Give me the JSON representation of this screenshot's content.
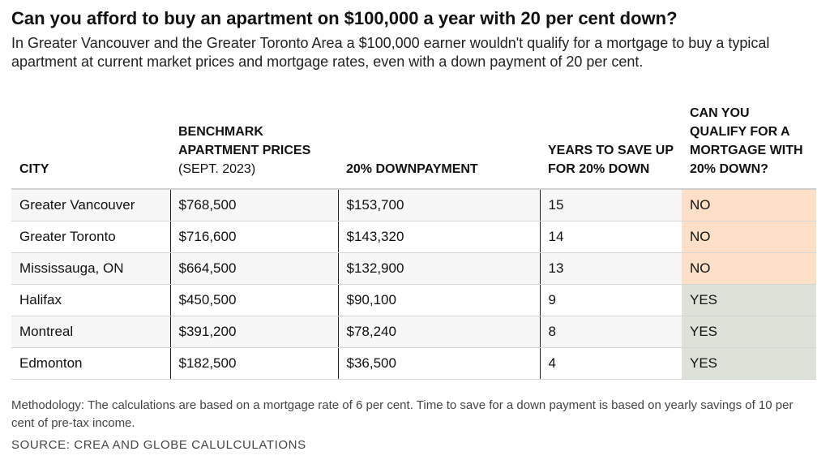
{
  "header": {
    "title": "Can you afford to buy an apartment on $100,000 a year with 20 per cent down?",
    "subtitle": "In Greater Vancouver and the Greater Toronto Area a $100,000 earner wouldn't qualify for a mortgage to buy a typical apartment at current market prices and mortgage rates, even with a down payment of 20 per cent."
  },
  "chart_data": {
    "type": "table",
    "columns": [
      {
        "bold": "CITY",
        "light": ""
      },
      {
        "bold": "BENCHMARK APARTMENT PRICES",
        "light": " (SEPT. 2023)"
      },
      {
        "bold": "20% DOWNPAYMENT",
        "light": ""
      },
      {
        "bold": "YEARS TO SAVE UP FOR 20% DOWN",
        "light": ""
      },
      {
        "bold": "CAN YOU QUALIFY FOR A MORTGAGE WITH 20% DOWN?",
        "light": ""
      }
    ],
    "rows": [
      {
        "city": "Greater Vancouver",
        "price": "$768,500",
        "down": "$153,700",
        "years": "15",
        "qualify": "NO"
      },
      {
        "city": "Greater Toronto",
        "price": "$716,600",
        "down": "$143,320",
        "years": "14",
        "qualify": "NO"
      },
      {
        "city": "Mississauga, ON",
        "price": "$664,500",
        "down": "$132,900",
        "years": "13",
        "qualify": "NO"
      },
      {
        "city": "Halifax",
        "price": "$450,500",
        "down": "$90,100",
        "years": "9",
        "qualify": "YES"
      },
      {
        "city": "Montreal",
        "price": "$391,200",
        "down": "$78,240",
        "years": "8",
        "qualify": "YES"
      },
      {
        "city": "Edmonton",
        "price": "$182,500",
        "down": "$36,500",
        "years": "4",
        "qualify": "YES"
      }
    ],
    "colors": {
      "no": "#fde0c7",
      "yes": "#dde2d9"
    }
  },
  "footer": {
    "methodology": "Methodology: The calculations are based on a mortgage rate of 6 per cent. Time to save for a down payment is based on yearly savings of 10 per cent of pre-tax income.",
    "source": "SOURCE: CREA AND GLOBE CALULCULATIONS"
  }
}
